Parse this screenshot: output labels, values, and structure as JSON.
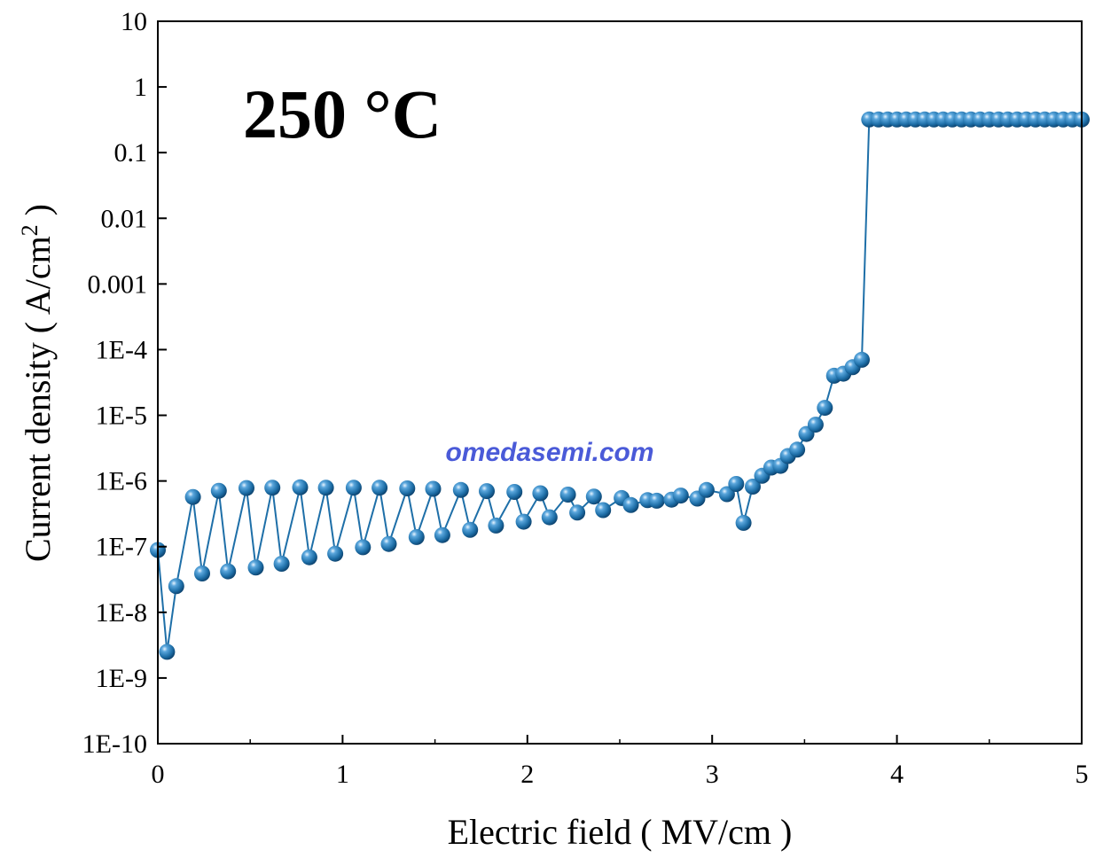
{
  "chart_data": {
    "type": "scatter",
    "title": "",
    "annotation": "250 °C",
    "watermark": "omedasemi.com",
    "xlabel": "Electric field ( MV/cm )",
    "ylabel_main": "Current density ( A/cm",
    "ylabel_sup": "2",
    "ylabel_end": " )",
    "xlim": [
      0,
      5
    ],
    "ylim": [
      1e-10,
      10
    ],
    "yscale": "log",
    "grid": false,
    "x_ticks": [
      0,
      1,
      2,
      3,
      4,
      5
    ],
    "x_tick_labels": [
      "0",
      "1",
      "2",
      "3",
      "4",
      "5"
    ],
    "y_ticks": [
      1e-10,
      1e-09,
      1e-08,
      1e-07,
      1e-06,
      1e-05,
      0.0001,
      0.001,
      0.01,
      0.1,
      1,
      10
    ],
    "y_tick_labels": [
      "1E-10",
      "1E-9",
      "1E-8",
      "1E-7",
      "1E-6",
      "1E-5",
      "1E-4",
      "0.001",
      "0.01",
      "0.1",
      "1",
      "10"
    ],
    "marker_color": "#1e6fa8",
    "line_color": "#1e6fa8",
    "series": [
      {
        "x": [
          0.0,
          0.05,
          0.1,
          0.19,
          0.24,
          0.33,
          0.38,
          0.48,
          0.53,
          0.62,
          0.67,
          0.77,
          0.82,
          0.91,
          0.96,
          1.06,
          1.11,
          1.2,
          1.25,
          1.35,
          1.4,
          1.49,
          1.54,
          1.64,
          1.69,
          1.78,
          1.83,
          1.93,
          1.98,
          2.07,
          2.12,
          2.22,
          2.27,
          2.36,
          2.41,
          2.51,
          2.56,
          2.65,
          2.7,
          2.78,
          2.83,
          2.92,
          2.97,
          3.08,
          3.13,
          3.17,
          3.22,
          3.27,
          3.32,
          3.37,
          3.41,
          3.46,
          3.51,
          3.56,
          3.61,
          3.66,
          3.71,
          3.76,
          3.81,
          3.85,
          3.9,
          3.95,
          4.0,
          4.05,
          4.1,
          4.15,
          4.2,
          4.25,
          4.3,
          4.35,
          4.4,
          4.45,
          4.5,
          4.55,
          4.6,
          4.65,
          4.7,
          4.75,
          4.8,
          4.85,
          4.9,
          4.95,
          5.0
        ],
        "y": [
          8.9e-08,
          2.5e-09,
          2.5e-08,
          5.7e-07,
          3.9e-08,
          7.1e-07,
          4.2e-08,
          7.8e-07,
          4.8e-08,
          7.9e-07,
          5.5e-08,
          8e-07,
          6.9e-08,
          7.9e-07,
          7.8e-08,
          7.9e-07,
          9.8e-08,
          7.9e-07,
          1.1e-07,
          7.7e-07,
          1.4e-07,
          7.6e-07,
          1.5e-07,
          7.3e-07,
          1.8e-07,
          7e-07,
          2.1e-07,
          6.8e-07,
          2.4e-07,
          6.5e-07,
          2.8e-07,
          6.2e-07,
          3.3e-07,
          5.8e-07,
          3.6e-07,
          5.5e-07,
          4.3e-07,
          5.1e-07,
          5e-07,
          5.2e-07,
          6e-07,
          5.4e-07,
          7.3e-07,
          6.3e-07,
          9e-07,
          2.3e-07,
          8.2e-07,
          1.2e-06,
          1.6e-06,
          1.7e-06,
          2.4e-06,
          3e-06,
          5.2e-06,
          7.2e-06,
          1.3e-05,
          4e-05,
          4.3e-05,
          5.4e-05,
          7e-05,
          0.32,
          0.32,
          0.32,
          0.32,
          0.32,
          0.32,
          0.32,
          0.32,
          0.32,
          0.32,
          0.32,
          0.32,
          0.32,
          0.32,
          0.32,
          0.32,
          0.32,
          0.32,
          0.32,
          0.32,
          0.32,
          0.32,
          0.32,
          0.32
        ]
      }
    ]
  }
}
